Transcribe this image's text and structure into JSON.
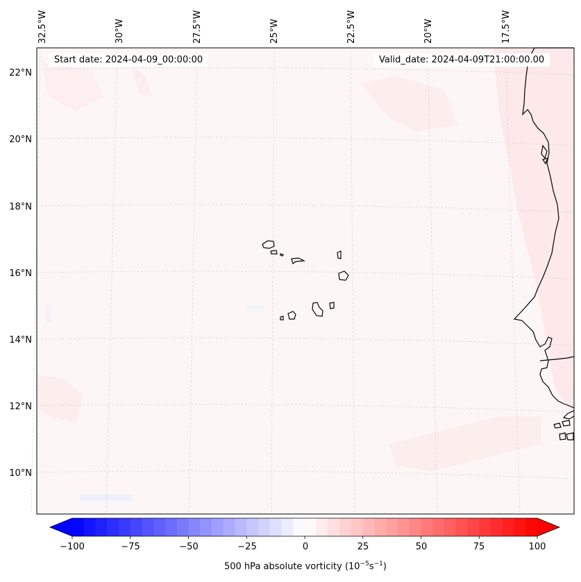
{
  "map": {
    "info_left": "Start date: 2024-04-09_00:00:00",
    "info_right": "Valid_date: 2024-04-09T21:00:00.00",
    "lon_labels": [
      "32.5°W",
      "30°W",
      "27.5°W",
      "25°W",
      "22.5°W",
      "20°W",
      "17.5°W"
    ],
    "lat_labels": [
      "22°N",
      "20°N",
      "18°N",
      "16°N",
      "14°N",
      "12°N",
      "10°N"
    ],
    "gridlines": "dashed",
    "field_colors": {
      "background": "#fdf6f6",
      "positive_patch": "#fde9e9",
      "negative_patch": "#eef0fc",
      "coast": "#000000"
    }
  },
  "colorbar": {
    "ticks": [
      "−100",
      "−75",
      "−50",
      "−25",
      "0",
      "25",
      "50",
      "75",
      "100"
    ],
    "min": -100,
    "max": 100,
    "steps": 40,
    "extend": "both",
    "label_text": "500 hPa absolute vorticity (10",
    "label_sup1": "−5",
    "label_mid": "s",
    "label_sup2": "−1",
    "label_end": ")",
    "colors": {
      "min": "#0000ff",
      "mid": "#ffffff",
      "max": "#ff0000"
    }
  }
}
